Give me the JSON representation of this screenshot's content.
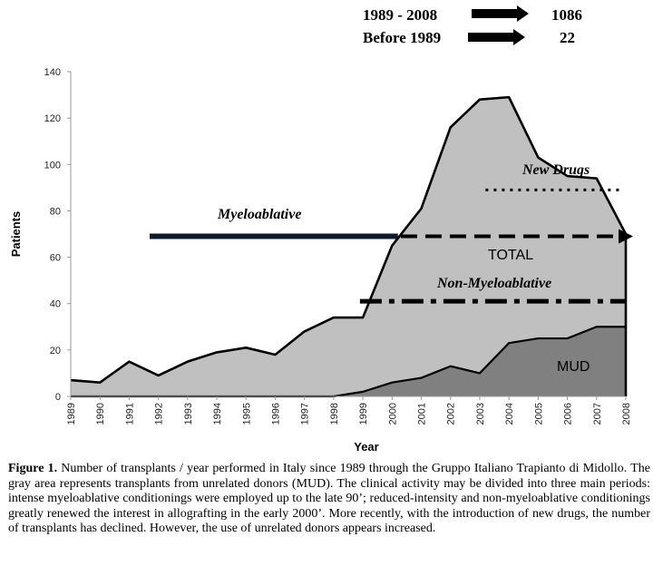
{
  "header_totals": [
    {
      "period": "1989 - 2008",
      "value": "1086"
    },
    {
      "period": "Before 1989",
      "value": "22"
    }
  ],
  "annotations": {
    "myeloablative": "Myeloablative",
    "new_drugs": "New Drugs",
    "total": "TOTAL",
    "non_myeloablative": "Non-Myeloablative",
    "mud": "MUD"
  },
  "caption": {
    "label": "Figure 1.",
    "text": " Number of transplants / year performed in Italy since 1989 through the Gruppo Italiano Trapianto di Midollo. The gray area represents transplants from unrelated donors (MUD). The clinical activity may be divided into three main periods: intense myeloablative conditionings were employed up to the late 90’; reduced-intensity and non-myeloablative conditionings greatly renewed the interest in allografting in the early 2000’. More recently, with the introduction of new drugs, the number of transplants has declined. However, the use of unrelated donors appears increased."
  },
  "chart_data": {
    "type": "area",
    "xlabel": "Year",
    "ylabel": "Patients",
    "ylim": [
      0,
      140
    ],
    "yticks": [
      0,
      20,
      40,
      60,
      80,
      100,
      120,
      140
    ],
    "x": [
      1989,
      1990,
      1991,
      1992,
      1993,
      1994,
      1995,
      1996,
      1997,
      1998,
      1999,
      2000,
      2001,
      2002,
      2003,
      2004,
      2005,
      2006,
      2007,
      2008
    ],
    "series": [
      {
        "name": "TOTAL",
        "color": "#c0c0c0",
        "values": [
          7,
          6,
          15,
          9,
          15,
          19,
          21,
          18,
          28,
          34,
          34,
          65,
          81,
          116,
          128,
          129,
          103,
          95,
          94,
          70
        ]
      },
      {
        "name": "MUD",
        "color": "#808080",
        "values": [
          0,
          0,
          0,
          0,
          0,
          0,
          0,
          0,
          0,
          0,
          2,
          6,
          8,
          13,
          10,
          23,
          25,
          25,
          30,
          30
        ]
      }
    ],
    "periods": [
      {
        "label": "Myeloablative",
        "start": 1991.7,
        "end": 2000.2,
        "y": 69,
        "style": "solid"
      },
      {
        "label": "TOTAL",
        "start": 2000.3,
        "end": 2008,
        "y": 69,
        "style": "dashed"
      },
      {
        "label": "Non-Myeloablative",
        "start": 1998.9,
        "end": 2008,
        "y": 41,
        "style": "dash-dot"
      },
      {
        "label": "New Drugs",
        "start": 2003.2,
        "end": 2007.8,
        "y": 89,
        "style": "dotted"
      }
    ]
  }
}
